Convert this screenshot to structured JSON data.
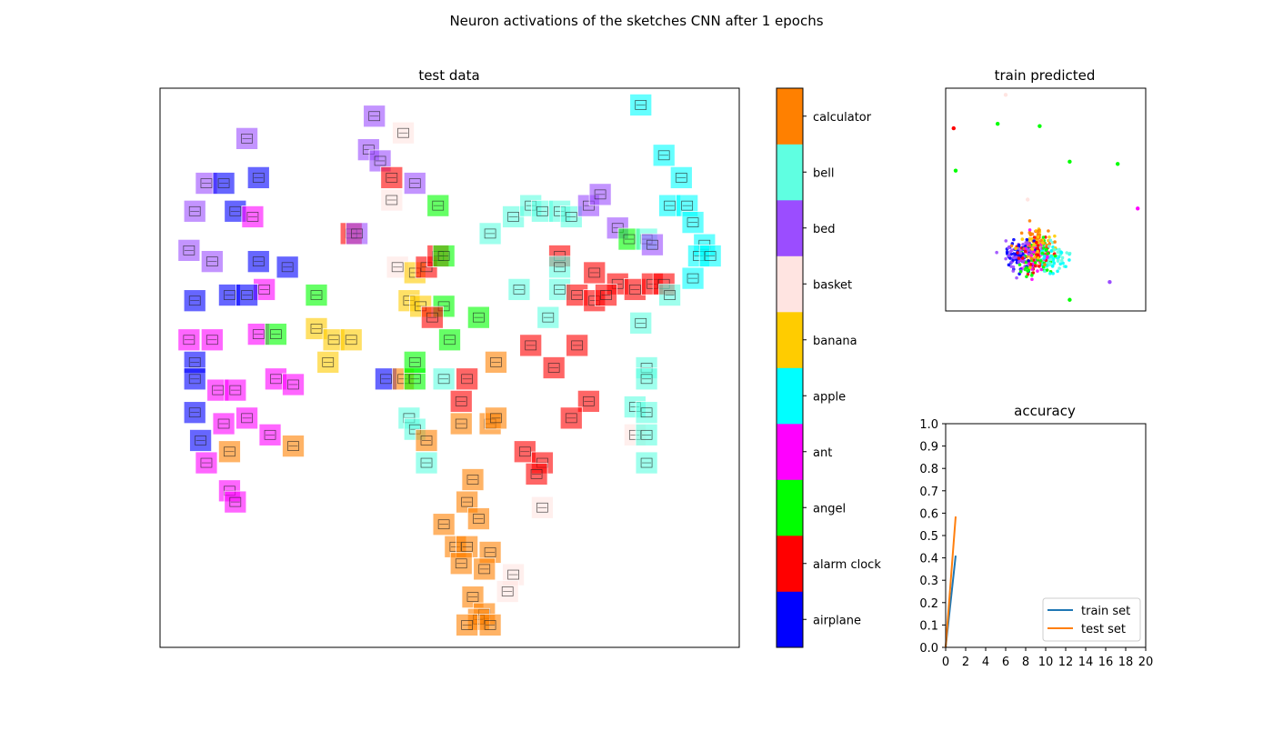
{
  "figure": {
    "suptitle": "Neuron activations of the sketches CNN after 1 epochs"
  },
  "chart_data": [
    {
      "type": "scatter",
      "title": "test data",
      "xlabel": "",
      "ylabel": "",
      "axes_ticks": "none",
      "grid": false,
      "marker": "thumbnail sketch tile tinted by class",
      "points": [
        {
          "x": 0.15,
          "y": 0.91,
          "label": "bed"
        },
        {
          "x": 0.08,
          "y": 0.83,
          "label": "bed"
        },
        {
          "x": 0.11,
          "y": 0.83,
          "label": "airplane"
        },
        {
          "x": 0.17,
          "y": 0.84,
          "label": "airplane"
        },
        {
          "x": 0.06,
          "y": 0.78,
          "label": "bed"
        },
        {
          "x": 0.13,
          "y": 0.78,
          "label": "airplane"
        },
        {
          "x": 0.16,
          "y": 0.77,
          "label": "ant"
        },
        {
          "x": 0.05,
          "y": 0.71,
          "label": "bed"
        },
        {
          "x": 0.09,
          "y": 0.69,
          "label": "bed"
        },
        {
          "x": 0.17,
          "y": 0.69,
          "label": "airplane"
        },
        {
          "x": 0.22,
          "y": 0.68,
          "label": "airplane"
        },
        {
          "x": 0.18,
          "y": 0.64,
          "label": "ant"
        },
        {
          "x": 0.06,
          "y": 0.62,
          "label": "airplane"
        },
        {
          "x": 0.12,
          "y": 0.63,
          "label": "airplane"
        },
        {
          "x": 0.15,
          "y": 0.63,
          "label": "airplane"
        },
        {
          "x": 0.05,
          "y": 0.55,
          "label": "ant"
        },
        {
          "x": 0.09,
          "y": 0.55,
          "label": "ant"
        },
        {
          "x": 0.17,
          "y": 0.56,
          "label": "ant"
        },
        {
          "x": 0.2,
          "y": 0.56,
          "label": "angel"
        },
        {
          "x": 0.06,
          "y": 0.51,
          "label": "airplane"
        },
        {
          "x": 0.06,
          "y": 0.48,
          "label": "airplane"
        },
        {
          "x": 0.1,
          "y": 0.46,
          "label": "ant"
        },
        {
          "x": 0.13,
          "y": 0.46,
          "label": "ant"
        },
        {
          "x": 0.2,
          "y": 0.48,
          "label": "ant"
        },
        {
          "x": 0.23,
          "y": 0.47,
          "label": "ant"
        },
        {
          "x": 0.06,
          "y": 0.42,
          "label": "airplane"
        },
        {
          "x": 0.11,
          "y": 0.4,
          "label": "ant"
        },
        {
          "x": 0.15,
          "y": 0.41,
          "label": "ant"
        },
        {
          "x": 0.19,
          "y": 0.38,
          "label": "ant"
        },
        {
          "x": 0.07,
          "y": 0.37,
          "label": "airplane"
        },
        {
          "x": 0.12,
          "y": 0.35,
          "label": "calculator"
        },
        {
          "x": 0.23,
          "y": 0.36,
          "label": "calculator"
        },
        {
          "x": 0.08,
          "y": 0.33,
          "label": "ant"
        },
        {
          "x": 0.12,
          "y": 0.28,
          "label": "ant"
        },
        {
          "x": 0.13,
          "y": 0.26,
          "label": "ant"
        },
        {
          "x": 0.27,
          "y": 0.63,
          "label": "angel"
        },
        {
          "x": 0.27,
          "y": 0.57,
          "label": "banana"
        },
        {
          "x": 0.3,
          "y": 0.55,
          "label": "banana"
        },
        {
          "x": 0.33,
          "y": 0.55,
          "label": "banana"
        },
        {
          "x": 0.29,
          "y": 0.51,
          "label": "banana"
        },
        {
          "x": 0.37,
          "y": 0.95,
          "label": "bed"
        },
        {
          "x": 0.42,
          "y": 0.92,
          "label": "basket"
        },
        {
          "x": 0.36,
          "y": 0.89,
          "label": "bed"
        },
        {
          "x": 0.38,
          "y": 0.87,
          "label": "bed"
        },
        {
          "x": 0.4,
          "y": 0.84,
          "label": "alarm clock"
        },
        {
          "x": 0.44,
          "y": 0.83,
          "label": "bed"
        },
        {
          "x": 0.4,
          "y": 0.8,
          "label": "basket"
        },
        {
          "x": 0.48,
          "y": 0.79,
          "label": "angel"
        },
        {
          "x": 0.33,
          "y": 0.74,
          "label": "alarm clock"
        },
        {
          "x": 0.34,
          "y": 0.74,
          "label": "bed"
        },
        {
          "x": 0.41,
          "y": 0.68,
          "label": "basket"
        },
        {
          "x": 0.44,
          "y": 0.67,
          "label": "banana"
        },
        {
          "x": 0.46,
          "y": 0.68,
          "label": "alarm clock"
        },
        {
          "x": 0.48,
          "y": 0.7,
          "label": "alarm clock"
        },
        {
          "x": 0.49,
          "y": 0.7,
          "label": "angel"
        },
        {
          "x": 0.43,
          "y": 0.62,
          "label": "banana"
        },
        {
          "x": 0.45,
          "y": 0.61,
          "label": "banana"
        },
        {
          "x": 0.49,
          "y": 0.61,
          "label": "angel"
        },
        {
          "x": 0.47,
          "y": 0.59,
          "label": "alarm clock"
        },
        {
          "x": 0.55,
          "y": 0.59,
          "label": "angel"
        },
        {
          "x": 0.5,
          "y": 0.55,
          "label": "angel"
        },
        {
          "x": 0.39,
          "y": 0.48,
          "label": "airplane"
        },
        {
          "x": 0.42,
          "y": 0.48,
          "label": "calculator"
        },
        {
          "x": 0.44,
          "y": 0.48,
          "label": "angel"
        },
        {
          "x": 0.44,
          "y": 0.51,
          "label": "angel"
        },
        {
          "x": 0.49,
          "y": 0.48,
          "label": "bell"
        },
        {
          "x": 0.53,
          "y": 0.48,
          "label": "alarm clock"
        },
        {
          "x": 0.58,
          "y": 0.51,
          "label": "calculator"
        },
        {
          "x": 0.52,
          "y": 0.44,
          "label": "alarm clock"
        },
        {
          "x": 0.43,
          "y": 0.41,
          "label": "bell"
        },
        {
          "x": 0.44,
          "y": 0.39,
          "label": "bell"
        },
        {
          "x": 0.46,
          "y": 0.37,
          "label": "calculator"
        },
        {
          "x": 0.52,
          "y": 0.4,
          "label": "calculator"
        },
        {
          "x": 0.57,
          "y": 0.4,
          "label": "calculator"
        },
        {
          "x": 0.58,
          "y": 0.41,
          "label": "calculator"
        },
        {
          "x": 0.46,
          "y": 0.33,
          "label": "bell"
        },
        {
          "x": 0.54,
          "y": 0.3,
          "label": "calculator"
        },
        {
          "x": 0.53,
          "y": 0.26,
          "label": "calculator"
        },
        {
          "x": 0.49,
          "y": 0.22,
          "label": "calculator"
        },
        {
          "x": 0.55,
          "y": 0.23,
          "label": "calculator"
        },
        {
          "x": 0.51,
          "y": 0.18,
          "label": "calculator"
        },
        {
          "x": 0.53,
          "y": 0.18,
          "label": "calculator"
        },
        {
          "x": 0.57,
          "y": 0.17,
          "label": "calculator"
        },
        {
          "x": 0.52,
          "y": 0.15,
          "label": "calculator"
        },
        {
          "x": 0.56,
          "y": 0.14,
          "label": "calculator"
        },
        {
          "x": 0.61,
          "y": 0.13,
          "label": "basket"
        },
        {
          "x": 0.6,
          "y": 0.1,
          "label": "basket"
        },
        {
          "x": 0.54,
          "y": 0.09,
          "label": "calculator"
        },
        {
          "x": 0.56,
          "y": 0.06,
          "label": "calculator"
        },
        {
          "x": 0.55,
          "y": 0.05,
          "label": "calculator"
        },
        {
          "x": 0.53,
          "y": 0.04,
          "label": "calculator"
        },
        {
          "x": 0.57,
          "y": 0.04,
          "label": "calculator"
        },
        {
          "x": 0.66,
          "y": 0.25,
          "label": "basket"
        },
        {
          "x": 0.57,
          "y": 0.74,
          "label": "bell"
        },
        {
          "x": 0.61,
          "y": 0.77,
          "label": "bell"
        },
        {
          "x": 0.64,
          "y": 0.79,
          "label": "bell"
        },
        {
          "x": 0.66,
          "y": 0.78,
          "label": "bell"
        },
        {
          "x": 0.69,
          "y": 0.78,
          "label": "bell"
        },
        {
          "x": 0.71,
          "y": 0.77,
          "label": "bell"
        },
        {
          "x": 0.74,
          "y": 0.79,
          "label": "bed"
        },
        {
          "x": 0.76,
          "y": 0.81,
          "label": "bed"
        },
        {
          "x": 0.79,
          "y": 0.75,
          "label": "bed"
        },
        {
          "x": 0.81,
          "y": 0.73,
          "label": "angel"
        },
        {
          "x": 0.84,
          "y": 0.73,
          "label": "bell"
        },
        {
          "x": 0.85,
          "y": 0.72,
          "label": "bed"
        },
        {
          "x": 0.69,
          "y": 0.7,
          "label": "alarm clock"
        },
        {
          "x": 0.69,
          "y": 0.68,
          "label": "bell"
        },
        {
          "x": 0.75,
          "y": 0.67,
          "label": "alarm clock"
        },
        {
          "x": 0.79,
          "y": 0.65,
          "label": "alarm clock"
        },
        {
          "x": 0.82,
          "y": 0.64,
          "label": "alarm clock"
        },
        {
          "x": 0.85,
          "y": 0.65,
          "label": "alarm clock"
        },
        {
          "x": 0.87,
          "y": 0.65,
          "label": "alarm clock"
        },
        {
          "x": 0.88,
          "y": 0.63,
          "label": "bell"
        },
        {
          "x": 0.62,
          "y": 0.64,
          "label": "bell"
        },
        {
          "x": 0.69,
          "y": 0.64,
          "label": "bell"
        },
        {
          "x": 0.72,
          "y": 0.63,
          "label": "alarm clock"
        },
        {
          "x": 0.75,
          "y": 0.62,
          "label": "alarm clock"
        },
        {
          "x": 0.77,
          "y": 0.63,
          "label": "alarm clock"
        },
        {
          "x": 0.67,
          "y": 0.59,
          "label": "bell"
        },
        {
          "x": 0.83,
          "y": 0.58,
          "label": "bell"
        },
        {
          "x": 0.64,
          "y": 0.54,
          "label": "alarm clock"
        },
        {
          "x": 0.68,
          "y": 0.5,
          "label": "alarm clock"
        },
        {
          "x": 0.72,
          "y": 0.54,
          "label": "alarm clock"
        },
        {
          "x": 0.84,
          "y": 0.5,
          "label": "bell"
        },
        {
          "x": 0.84,
          "y": 0.48,
          "label": "bell"
        },
        {
          "x": 0.74,
          "y": 0.44,
          "label": "alarm clock"
        },
        {
          "x": 0.71,
          "y": 0.41,
          "label": "alarm clock"
        },
        {
          "x": 0.82,
          "y": 0.43,
          "label": "bell"
        },
        {
          "x": 0.84,
          "y": 0.42,
          "label": "bell"
        },
        {
          "x": 0.82,
          "y": 0.38,
          "label": "basket"
        },
        {
          "x": 0.84,
          "y": 0.38,
          "label": "bell"
        },
        {
          "x": 0.63,
          "y": 0.35,
          "label": "alarm clock"
        },
        {
          "x": 0.66,
          "y": 0.33,
          "label": "alarm clock"
        },
        {
          "x": 0.65,
          "y": 0.31,
          "label": "alarm clock"
        },
        {
          "x": 0.84,
          "y": 0.33,
          "label": "bell"
        },
        {
          "x": 0.83,
          "y": 0.97,
          "label": "apple"
        },
        {
          "x": 0.87,
          "y": 0.88,
          "label": "apple"
        },
        {
          "x": 0.9,
          "y": 0.84,
          "label": "apple"
        },
        {
          "x": 0.88,
          "y": 0.79,
          "label": "apple"
        },
        {
          "x": 0.91,
          "y": 0.79,
          "label": "apple"
        },
        {
          "x": 0.92,
          "y": 0.76,
          "label": "apple"
        },
        {
          "x": 0.94,
          "y": 0.72,
          "label": "apple"
        },
        {
          "x": 0.93,
          "y": 0.7,
          "label": "apple"
        },
        {
          "x": 0.95,
          "y": 0.7,
          "label": "apple"
        },
        {
          "x": 0.92,
          "y": 0.66,
          "label": "apple"
        }
      ]
    },
    {
      "type": "heatmap",
      "subtype": "colorbar",
      "categories": [
        "airplane",
        "alarm clock",
        "angel",
        "ant",
        "apple",
        "banana",
        "basket",
        "bed",
        "bell",
        "calculator"
      ],
      "colors": [
        "#0000ff",
        "#ff0000",
        "#00ff00",
        "#ff00ff",
        "#00ffff",
        "#ffcc00",
        "#ffe4e1",
        "#9b4dff",
        "#5fffe1",
        "#ff8000"
      ]
    },
    {
      "type": "scatter",
      "title": "train predicted",
      "xlabel": "",
      "ylabel": "",
      "axes_ticks": "none",
      "grid": false,
      "outlier_points": [
        {
          "x": 0.3,
          "y": 0.97,
          "label": "basket"
        },
        {
          "x": 0.04,
          "y": 0.82,
          "label": "alarm clock"
        },
        {
          "x": 0.26,
          "y": 0.84,
          "label": "angel"
        },
        {
          "x": 0.47,
          "y": 0.83,
          "label": "angel"
        },
        {
          "x": 0.05,
          "y": 0.63,
          "label": "angel"
        },
        {
          "x": 0.62,
          "y": 0.67,
          "label": "angel"
        },
        {
          "x": 0.86,
          "y": 0.66,
          "label": "angel"
        },
        {
          "x": 0.96,
          "y": 0.46,
          "label": "ant"
        },
        {
          "x": 0.82,
          "y": 0.13,
          "label": "bed"
        },
        {
          "x": 0.62,
          "y": 0.05,
          "label": "angel"
        },
        {
          "x": 0.41,
          "y": 0.5,
          "label": "basket"
        }
      ],
      "cluster": {
        "center": [
          0.45,
          0.25
        ],
        "spread": [
          0.14,
          0.15
        ],
        "labels": [
          "airplane",
          "ant",
          "bed",
          "calculator",
          "bell",
          "apple",
          "alarm clock",
          "angel",
          "banana"
        ]
      }
    },
    {
      "type": "line",
      "title": "accuracy",
      "xlabel": "",
      "ylabel": "",
      "xlim": [
        0,
        20
      ],
      "ylim": [
        0.0,
        1.0
      ],
      "xticks": [
        "0",
        "2",
        "4",
        "6",
        "8",
        "10",
        "12",
        "14",
        "16",
        "18",
        "20"
      ],
      "yticks": [
        "0.0",
        "0.1",
        "0.2",
        "0.3",
        "0.4",
        "0.5",
        "0.6",
        "0.7",
        "0.8",
        "0.9",
        "1.0"
      ],
      "legend_position": "lower-right",
      "grid": false,
      "series": [
        {
          "name": "train set",
          "color": "#1f77b4",
          "x": [
            0,
            1
          ],
          "y": [
            0.0,
            0.41
          ]
        },
        {
          "name": "test set",
          "color": "#ff7f0e",
          "x": [
            0,
            1
          ],
          "y": [
            0.0,
            0.585
          ]
        }
      ]
    }
  ]
}
